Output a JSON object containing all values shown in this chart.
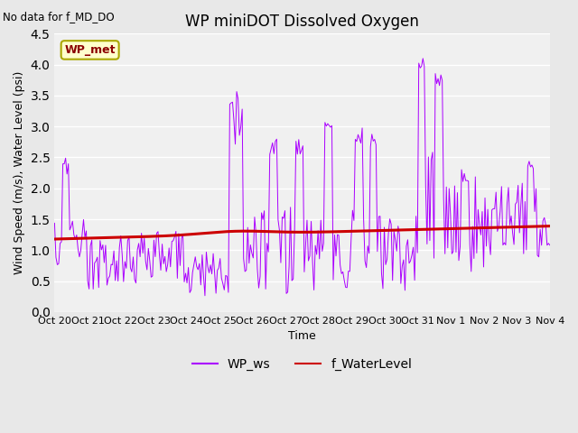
{
  "title": "WP miniDOT Dissolved Oxygen",
  "no_data_text": "No data for f_MD_DO",
  "xlabel": "Time",
  "ylabel": "Wind Speed (m/s), Water Level (psi)",
  "ylim": [
    0.0,
    4.5
  ],
  "xtick_labels": [
    "Oct 20",
    "Oct 21",
    "Oct 22",
    "Oct 23",
    "Oct 24",
    "Oct 25",
    "Oct 26",
    "Oct 27",
    "Oct 28",
    "Oct 29",
    "Oct 30",
    "Oct 31",
    "Nov 1",
    "Nov 2",
    "Nov 3",
    "Nov 4"
  ],
  "legend_label_ws": "WP_ws",
  "legend_label_wl": "f_WaterLevel",
  "inset_label": "WP_met",
  "inset_color_bg": "#ffffcc",
  "inset_color_border": "#aaa800",
  "ws_color": "#aa00ff",
  "wl_color": "#cc0000",
  "fig_facecolor": "#e8e8e8",
  "plot_facecolor": "#f0f0f0",
  "grid_color": "#ffffff",
  "title_fontsize": 12,
  "label_fontsize": 9,
  "tick_fontsize": 8,
  "legend_fontsize": 10
}
